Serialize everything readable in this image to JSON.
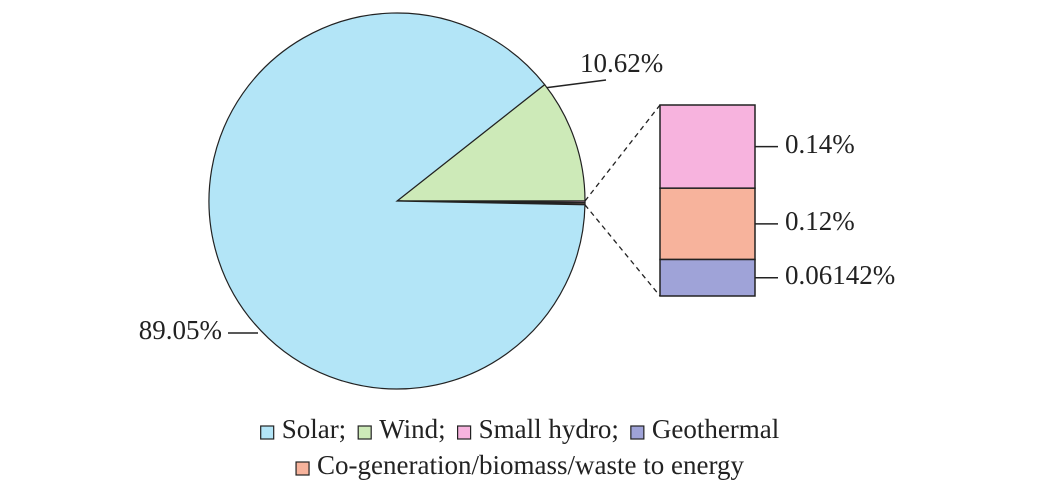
{
  "chart_data": {
    "type": "bar-of-pie",
    "categories": [
      "Solar;",
      "Wind;",
      "Small hydro;",
      "Co-generation/biomass/waste to energy",
      "Geothermal"
    ],
    "values": [
      89.05,
      10.62,
      0.14,
      0.12,
      0.06142
    ],
    "value_labels": [
      "89.05%",
      "10.62%",
      "0.14%",
      "0.12%",
      "0.06142%"
    ],
    "colors": [
      "#b3e5f7",
      "#cdeab8",
      "#f7b3de",
      "#f7b39c",
      "#9fa3d8"
    ]
  }
}
